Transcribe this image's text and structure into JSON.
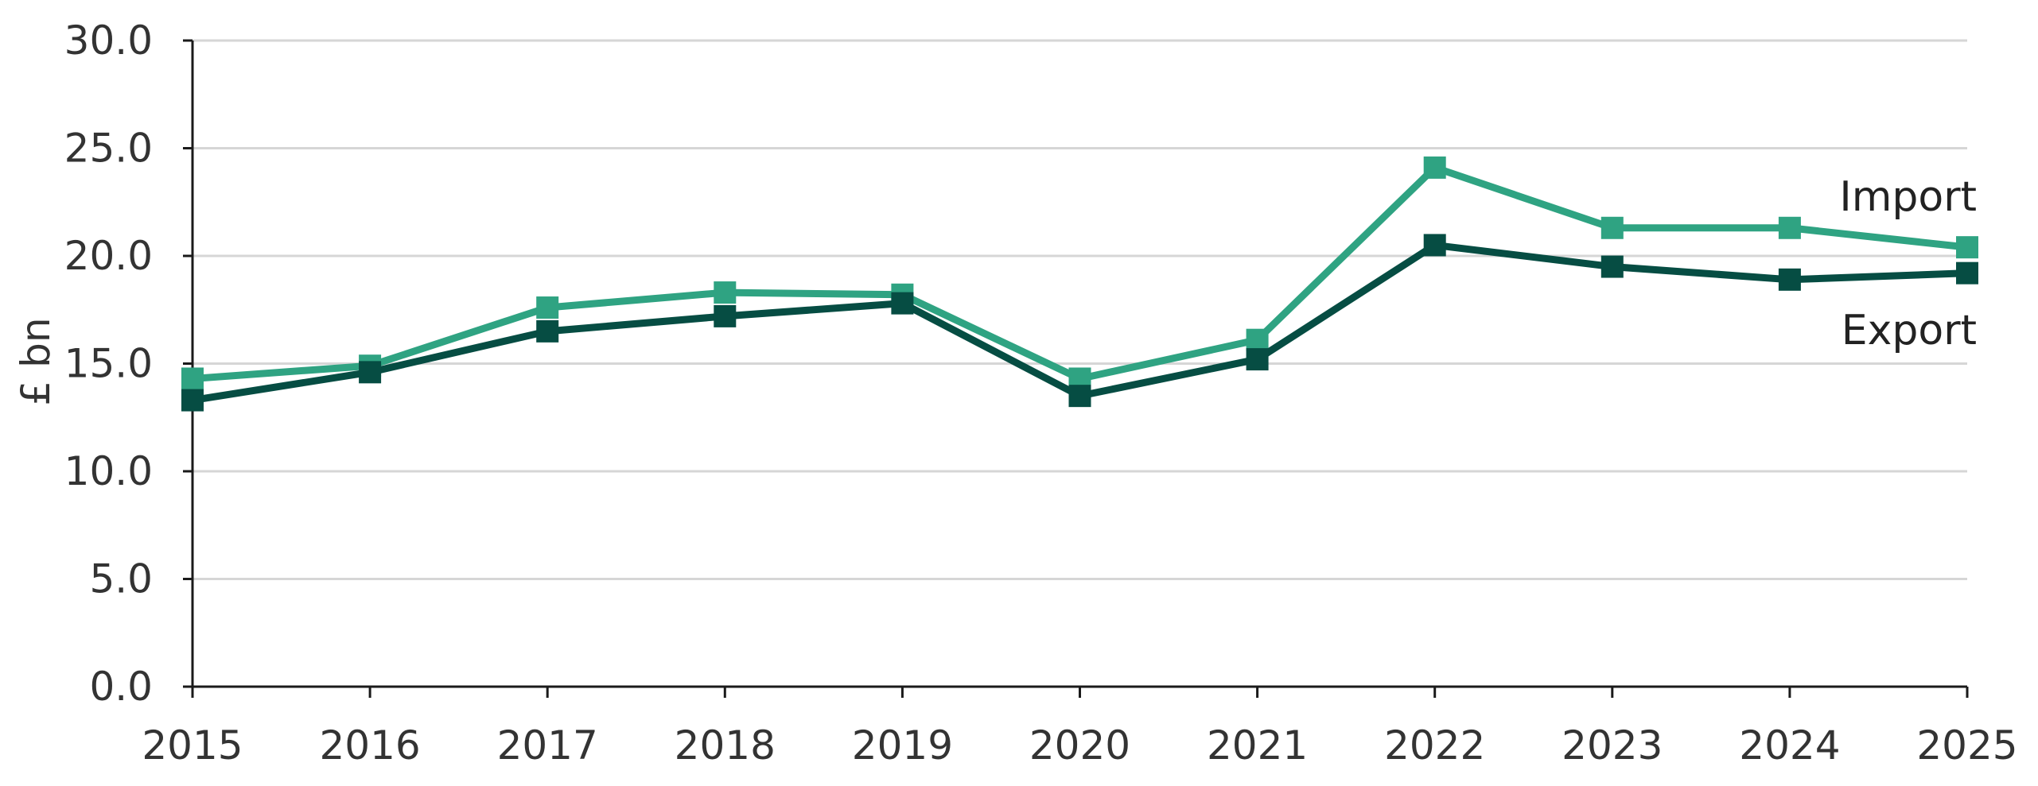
{
  "chart_data": {
    "type": "line",
    "title": "",
    "xlabel": "",
    "ylabel": "£ bn",
    "x": [
      "2015",
      "2016",
      "2017",
      "2018",
      "2019",
      "2020",
      "2021",
      "2022",
      "2023",
      "2024",
      "2025"
    ],
    "ylim": [
      0,
      30
    ],
    "yticks": [
      "0.0",
      "5.0",
      "10.0",
      "15.0",
      "20.0",
      "25.0",
      "30.0"
    ],
    "grid": "horizontal",
    "legend": "inline labels at right end of lines",
    "series": [
      {
        "name": "Import",
        "color": "#2fa382",
        "marker": "square",
        "values": [
          14.3,
          14.9,
          17.6,
          18.3,
          18.2,
          14.3,
          16.1,
          24.1,
          21.3,
          21.3,
          20.4
        ]
      },
      {
        "name": "Export",
        "color": "#064d43",
        "marker": "square",
        "values": [
          13.3,
          14.6,
          16.5,
          17.2,
          17.8,
          13.5,
          15.2,
          20.5,
          19.5,
          18.9,
          19.2
        ]
      }
    ]
  }
}
